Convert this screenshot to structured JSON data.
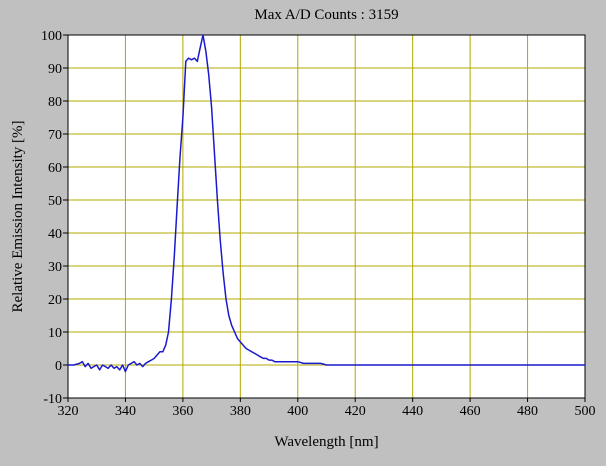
{
  "chart_data": {
    "type": "line",
    "title": "Max A/D Counts : 3159",
    "xlabel": "Wavelength [nm]",
    "ylabel": "Relative Emission Intensity [%]",
    "xlim": [
      320,
      500
    ],
    "ylim": [
      -10,
      100
    ],
    "xticks": [
      "320",
      "340",
      "360",
      "380",
      "400",
      "420",
      "440",
      "460",
      "480",
      "500"
    ],
    "yticks": [
      "-10",
      "0",
      "10",
      "20",
      "30",
      "40",
      "50",
      "60",
      "70",
      "80",
      "90",
      "100"
    ],
    "grid": true,
    "colors": {
      "line": "#1a1acc",
      "grid": "#b3a800",
      "plot_bg": "#ffffff",
      "frame_bg": "#c0c0c0"
    },
    "series": [
      {
        "x": [
          320,
          322,
          324,
          325,
          326,
          327,
          328,
          329,
          330,
          331,
          332,
          333,
          334,
          335,
          336,
          337,
          338,
          339,
          340,
          341,
          342,
          343,
          344,
          345,
          346,
          347,
          348,
          349,
          350,
          351,
          352,
          353,
          354,
          355,
          356,
          357,
          358,
          359,
          360,
          361,
          362,
          363,
          364,
          365,
          366,
          367,
          368,
          369,
          370,
          371,
          372,
          373,
          374,
          375,
          376,
          377,
          378,
          379,
          380,
          381,
          382,
          383,
          384,
          385,
          386,
          387,
          388,
          389,
          390,
          391,
          392,
          393,
          394,
          395,
          396,
          397,
          398,
          399,
          400,
          402,
          404,
          406,
          408,
          410,
          412,
          414,
          416,
          418,
          420,
          425,
          430,
          435,
          440,
          445,
          450,
          455,
          460,
          465,
          470,
          475,
          480,
          485,
          490,
          495,
          500
        ],
        "y": [
          0,
          0,
          0.5,
          1,
          -0.5,
          0.5,
          -1,
          -0.5,
          0,
          -1.5,
          0,
          -0.5,
          -1,
          0,
          -1,
          -0.5,
          -1.5,
          0,
          -2,
          0,
          0.5,
          1,
          0,
          0.5,
          -0.5,
          0.5,
          1,
          1.5,
          2,
          3,
          4,
          4,
          6,
          10,
          20,
          33,
          48,
          63,
          75,
          92,
          93,
          92.5,
          93,
          92,
          96,
          100,
          95,
          88,
          78,
          64,
          50,
          38,
          28,
          20,
          15,
          12,
          10,
          8,
          7,
          6,
          5,
          4.5,
          4,
          3.5,
          3,
          2.5,
          2,
          2,
          1.5,
          1.5,
          1,
          1,
          1,
          1,
          1,
          1,
          1,
          1,
          1,
          0.5,
          0.5,
          0.5,
          0.5,
          0,
          0,
          0,
          0,
          0,
          0,
          0,
          0,
          0,
          0,
          0,
          0,
          0,
          0,
          0,
          0,
          0,
          0,
          0,
          0,
          0,
          0
        ]
      }
    ]
  }
}
